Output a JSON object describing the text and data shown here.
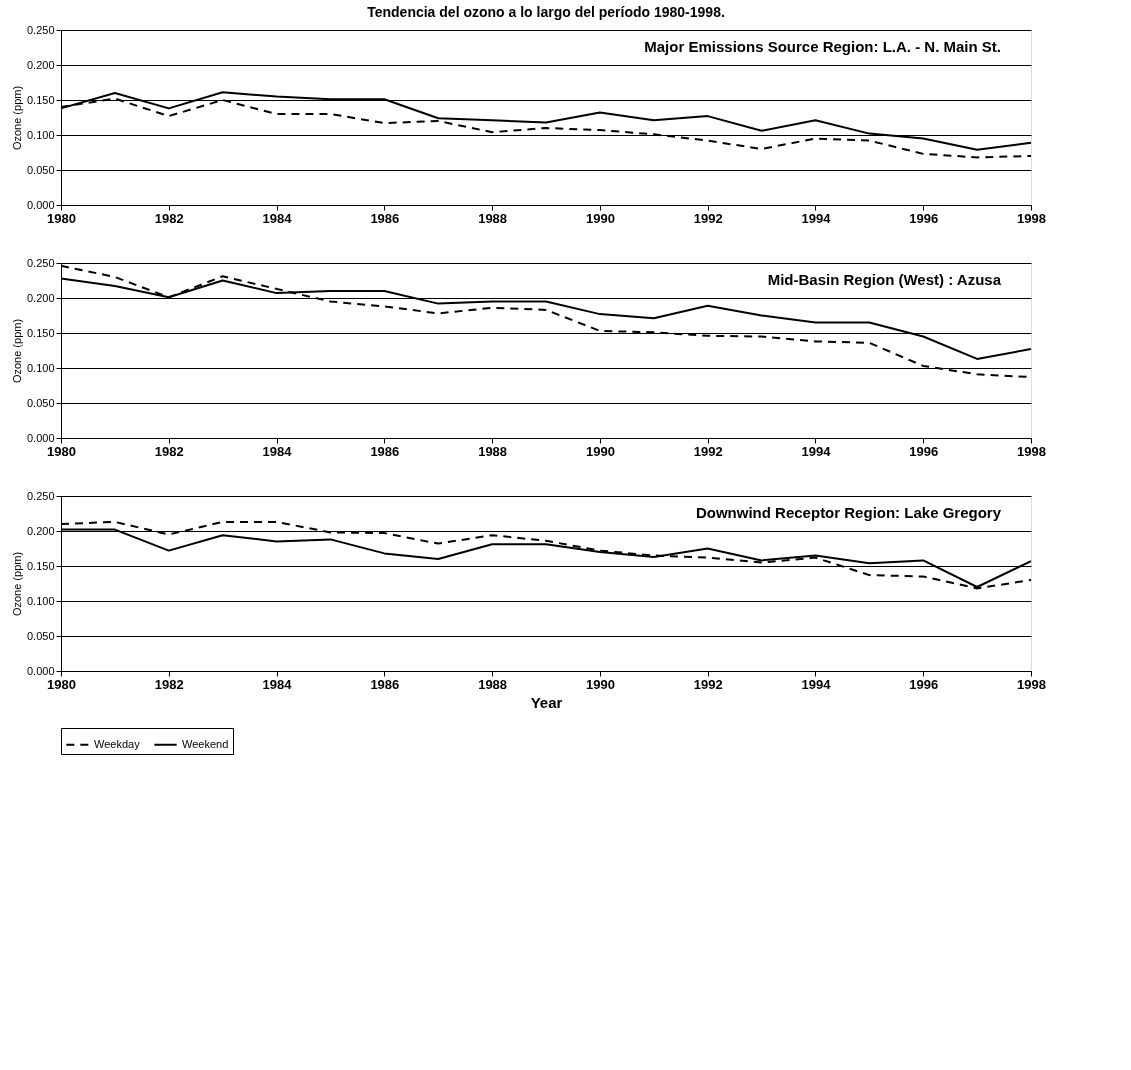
{
  "chart_data": [
    {
      "type": "line",
      "title": "Tendencia del ozono a lo largo del período 1980-1998.",
      "subtitle": "Major Emissions Source Region:  L.A. - N. Main St.",
      "ylabel": "Ozone (ppm)",
      "x": [
        1980,
        1981,
        1982,
        1983,
        1984,
        1985,
        1986,
        1987,
        1988,
        1989,
        1990,
        1991,
        1992,
        1993,
        1994,
        1995,
        1996,
        1997,
        1998
      ],
      "xlim": [
        1980,
        1998
      ],
      "xticks": [
        1980,
        1982,
        1984,
        1986,
        1988,
        1990,
        1992,
        1994,
        1996,
        1998
      ],
      "ylim": [
        0,
        0.25
      ],
      "yticks": [
        {
          "value": 0,
          "label": "0.000"
        },
        {
          "value": 0.05,
          "label": "0.050"
        },
        {
          "value": 0.1,
          "label": "0.100"
        },
        {
          "value": 0.15,
          "label": "0.150"
        },
        {
          "value": 0.2,
          "label": "0.200"
        },
        {
          "value": 0.25,
          "label": "0.250"
        }
      ],
      "grid": "y",
      "legend": false,
      "marker": "none",
      "series": [
        {
          "color": "#000000",
          "line_style": "dashed",
          "values": [
            0.14,
            0.152,
            0.127,
            0.15,
            0.13,
            0.13,
            0.117,
            0.12,
            0.104,
            0.11,
            0.107,
            0.101,
            0.092,
            0.08,
            0.095,
            0.092,
            0.073,
            0.068,
            0.07
          ]
        },
        {
          "color": "#000000",
          "line_style": "solid",
          "values": [
            0.138,
            0.16,
            0.138,
            0.161,
            0.155,
            0.151,
            0.151,
            0.124,
            0.121,
            0.118,
            0.132,
            0.121,
            0.127,
            0.106,
            0.121,
            0.102,
            0.095,
            0.079,
            0.089
          ]
        }
      ]
    },
    {
      "type": "line",
      "subtitle": "Mid-Basin Region (West) : Azusa",
      "ylabel": "Ozone (ppm)",
      "x": [
        1980,
        1981,
        1982,
        1983,
        1984,
        1985,
        1986,
        1987,
        1988,
        1989,
        1990,
        1991,
        1992,
        1993,
        1994,
        1995,
        1996,
        1997,
        1998
      ],
      "xlim": [
        1980,
        1998
      ],
      "xticks": [
        1980,
        1982,
        1984,
        1986,
        1988,
        1990,
        1992,
        1994,
        1996,
        1998
      ],
      "ylim": [
        0,
        0.25
      ],
      "yticks": [
        {
          "value": 0,
          "label": "0.000"
        },
        {
          "value": 0.05,
          "label": "0.050"
        },
        {
          "value": 0.1,
          "label": "0.100"
        },
        {
          "value": 0.15,
          "label": "0.150"
        },
        {
          "value": 0.2,
          "label": "0.200"
        },
        {
          "value": 0.25,
          "label": "0.250"
        }
      ],
      "grid": "y",
      "legend": false,
      "marker": "none",
      "series": [
        {
          "color": "#000000",
          "line_style": "dashed",
          "values": [
            0.246,
            0.23,
            0.201,
            0.231,
            0.213,
            0.195,
            0.188,
            0.178,
            0.186,
            0.183,
            0.153,
            0.151,
            0.146,
            0.145,
            0.138,
            0.136,
            0.103,
            0.091,
            0.087
          ]
        },
        {
          "color": "#000000",
          "line_style": "solid",
          "values": [
            0.228,
            0.217,
            0.201,
            0.225,
            0.207,
            0.21,
            0.21,
            0.192,
            0.195,
            0.195,
            0.177,
            0.171,
            0.189,
            0.175,
            0.165,
            0.165,
            0.145,
            0.113,
            0.127
          ]
        }
      ]
    },
    {
      "type": "line",
      "subtitle": "Downwind Receptor Region:  Lake Gregory",
      "xlabel": "Year",
      "ylabel": "Ozone (ppm)",
      "x": [
        1980,
        1981,
        1982,
        1983,
        1984,
        1985,
        1986,
        1987,
        1988,
        1989,
        1990,
        1991,
        1992,
        1993,
        1994,
        1995,
        1996,
        1997,
        1998
      ],
      "xlim": [
        1980,
        1998
      ],
      "xticks": [
        1980,
        1982,
        1984,
        1986,
        1988,
        1990,
        1992,
        1994,
        1996,
        1998
      ],
      "ylim": [
        0,
        0.25
      ],
      "yticks": [
        {
          "value": 0,
          "label": "0.000"
        },
        {
          "value": 0.05,
          "label": "0.050"
        },
        {
          "value": 0.1,
          "label": "0.100"
        },
        {
          "value": 0.15,
          "label": "0.150"
        },
        {
          "value": 0.2,
          "label": "0.200"
        },
        {
          "value": 0.25,
          "label": "0.250"
        }
      ],
      "grid": "y",
      "legend": "bottom",
      "marker": "none",
      "series": [
        {
          "name": "Weekday",
          "color": "#000000",
          "line_style": "dashed",
          "values": [
            0.21,
            0.213,
            0.195,
            0.213,
            0.213,
            0.198,
            0.197,
            0.182,
            0.194,
            0.186,
            0.172,
            0.165,
            0.162,
            0.155,
            0.162,
            0.137,
            0.135,
            0.118,
            0.13
          ]
        },
        {
          "name": "Weekend",
          "color": "#000000",
          "line_style": "solid",
          "values": [
            0.202,
            0.202,
            0.172,
            0.194,
            0.185,
            0.188,
            0.168,
            0.16,
            0.181,
            0.181,
            0.17,
            0.163,
            0.175,
            0.158,
            0.165,
            0.154,
            0.158,
            0.12,
            0.157
          ]
        }
      ]
    }
  ]
}
